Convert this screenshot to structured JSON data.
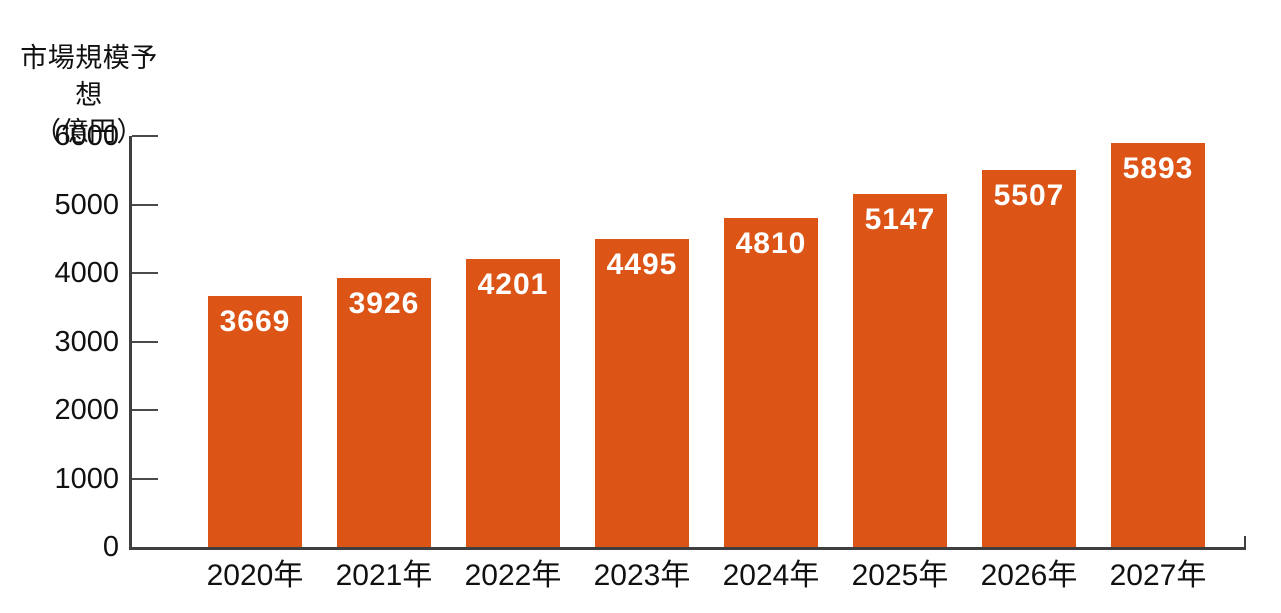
{
  "page": {
    "background": "#ffffff"
  },
  "chart": {
    "title_line1": "市場規模予想",
    "title_line2": "（億円）"
  },
  "chart_data": {
    "type": "bar",
    "title": "市場規模予想（億円）",
    "ylabel": "市場規模予想（億円）",
    "xlabel": "",
    "categories": [
      "2020年",
      "2021年",
      "2022年",
      "2023年",
      "2024年",
      "2025年",
      "2026年",
      "2027年"
    ],
    "values": [
      3669,
      3926,
      4201,
      4495,
      4810,
      5147,
      5507,
      5893
    ],
    "ylim": [
      0,
      6000
    ],
    "yticks": [
      0,
      1000,
      2000,
      3000,
      4000,
      5000,
      6000
    ],
    "grid": false,
    "legend_position": "none",
    "bar_color": "#dc5517",
    "bar_label_color": "#ffffff",
    "axis_color": "#3f3f3f",
    "text_color": "#111111"
  }
}
